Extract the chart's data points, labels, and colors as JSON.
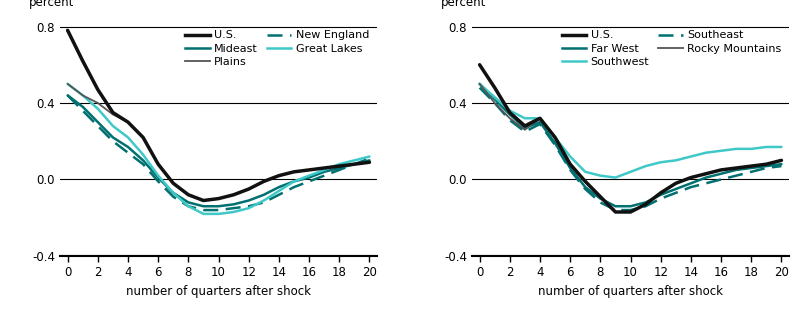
{
  "x": [
    0,
    1,
    2,
    3,
    4,
    5,
    6,
    7,
    8,
    9,
    10,
    11,
    12,
    13,
    14,
    15,
    16,
    17,
    18,
    19,
    20
  ],
  "left": {
    "US": [
      0.78,
      0.62,
      0.47,
      0.35,
      0.3,
      0.22,
      0.08,
      -0.02,
      -0.08,
      -0.11,
      -0.1,
      -0.08,
      -0.05,
      -0.01,
      0.02,
      0.04,
      0.05,
      0.06,
      0.07,
      0.08,
      0.09
    ],
    "Plains": [
      0.5,
      0.44,
      0.4,
      0.34,
      0.3,
      0.22,
      0.08,
      -0.02,
      -0.08,
      -0.11,
      -0.1,
      -0.08,
      -0.05,
      -0.01,
      0.02,
      0.04,
      0.05,
      0.06,
      0.07,
      0.08,
      0.09
    ],
    "Mideast": [
      0.44,
      0.38,
      0.3,
      0.22,
      0.17,
      0.1,
      0.01,
      -0.07,
      -0.12,
      -0.14,
      -0.14,
      -0.13,
      -0.11,
      -0.08,
      -0.04,
      -0.01,
      0.01,
      0.04,
      0.06,
      0.08,
      0.1
    ],
    "NewEngland": [
      0.44,
      0.36,
      0.28,
      0.2,
      0.14,
      0.08,
      -0.01,
      -0.09,
      -0.14,
      -0.16,
      -0.16,
      -0.15,
      -0.14,
      -0.12,
      -0.08,
      -0.04,
      -0.01,
      0.02,
      0.05,
      0.08,
      0.11
    ],
    "GreatLakes": [
      0.5,
      0.44,
      0.37,
      0.28,
      0.22,
      0.13,
      0.02,
      -0.07,
      -0.14,
      -0.18,
      -0.18,
      -0.17,
      -0.15,
      -0.11,
      -0.06,
      -0.01,
      0.02,
      0.05,
      0.08,
      0.1,
      0.12
    ]
  },
  "right": {
    "US": [
      0.6,
      0.48,
      0.35,
      0.28,
      0.32,
      0.22,
      0.08,
      -0.01,
      -0.09,
      -0.17,
      -0.17,
      -0.13,
      -0.07,
      -0.02,
      0.01,
      0.03,
      0.05,
      0.06,
      0.07,
      0.08,
      0.1
    ],
    "RockyMountains": [
      0.5,
      0.4,
      0.32,
      0.26,
      0.32,
      0.22,
      0.08,
      -0.01,
      -0.09,
      -0.17,
      -0.17,
      -0.13,
      -0.07,
      -0.02,
      0.01,
      0.03,
      0.05,
      0.06,
      0.07,
      0.08,
      0.1
    ],
    "Southwest": [
      0.5,
      0.43,
      0.36,
      0.32,
      0.32,
      0.22,
      0.12,
      0.04,
      0.02,
      0.01,
      0.04,
      0.07,
      0.09,
      0.1,
      0.12,
      0.14,
      0.15,
      0.16,
      0.16,
      0.17,
      0.17
    ],
    "FarWest": [
      0.5,
      0.42,
      0.34,
      0.27,
      0.3,
      0.19,
      0.06,
      -0.04,
      -0.1,
      -0.14,
      -0.14,
      -0.12,
      -0.08,
      -0.05,
      -0.02,
      0.01,
      0.03,
      0.05,
      0.06,
      0.07,
      0.08
    ],
    "Southeast": [
      0.48,
      0.4,
      0.31,
      0.25,
      0.29,
      0.18,
      0.05,
      -0.05,
      -0.12,
      -0.16,
      -0.16,
      -0.14,
      -0.1,
      -0.07,
      -0.04,
      -0.02,
      0.0,
      0.02,
      0.04,
      0.06,
      0.07
    ]
  },
  "colors": {
    "US": "#111111",
    "Plains": "#555555",
    "Mideast": "#007070",
    "NewEngland": "#007070",
    "GreatLakes": "#40c8c8",
    "FarWest": "#007070",
    "Southwest": "#40c8c8",
    "Southeast": "#007070",
    "RockyMountains": "#555555"
  },
  "ylim": [
    -0.4,
    0.82
  ],
  "yticks": [
    -0.4,
    0.0,
    0.4,
    0.8
  ],
  "ytick_labels": [
    "-0.4",
    "0.0",
    "0.4",
    "0.8"
  ],
  "xticks": [
    0,
    2,
    4,
    6,
    8,
    10,
    12,
    14,
    16,
    18,
    20
  ],
  "xlabel": "number of quarters after shock",
  "ylabel": "percent"
}
